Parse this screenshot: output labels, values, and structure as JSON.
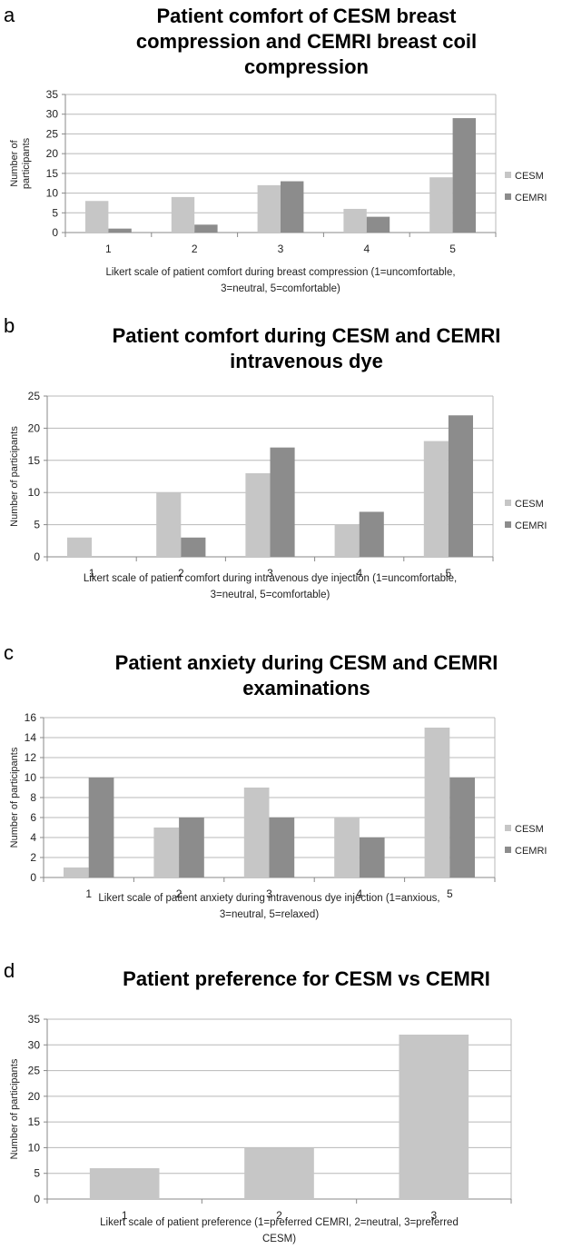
{
  "chart_data": [
    {
      "type": "bar",
      "panel": "a",
      "title": "Patient comfort of CESM breast compression and CEMRI breast coil compression",
      "title_lines": [
        "Patient comfort of CESM breast",
        "compression and CEMRI breast coil",
        "compression"
      ],
      "xlabel": "Likert scale of patient comfort during breast compression (1=uncomfortable, 3=neutral, 5=comfortable)",
      "xlabel_lines": [
        "Likert scale of patient comfort during breast compression (1=uncomfortable,",
        "3=neutral, 5=comfortable)"
      ],
      "ylabel": "Number of participants",
      "ylabel_lines": [
        "Number of",
        "participants"
      ],
      "categories": [
        "1",
        "2",
        "3",
        "4",
        "5"
      ],
      "series": [
        {
          "name": "CESM",
          "color": "#c6c6c6",
          "values": [
            8,
            9,
            12,
            6,
            14
          ]
        },
        {
          "name": "CEMRI",
          "color": "#8c8c8c",
          "values": [
            1,
            2,
            13,
            4,
            29
          ]
        }
      ],
      "ylim": [
        0,
        35
      ],
      "yticks": [
        "0",
        "5",
        "10",
        "15",
        "20",
        "25",
        "30",
        "35"
      ],
      "grid": true,
      "legend": "right"
    },
    {
      "type": "bar",
      "panel": "b",
      "title": "Patient comfort during CESM and CEMRI intravenous dye",
      "title_lines": [
        "Patient comfort  during CESM and CEMRI",
        "intravenous dye"
      ],
      "xlabel": "Likert scale of patient comfort during intravenous dye injection (1=uncomfortable, 3=neutral, 5=comfortable)",
      "xlabel_lines": [
        "Likert scale of patient comfort during intravenous dye injection (1=uncomfortable,",
        "3=neutral, 5=comfortable)"
      ],
      "ylabel": "Number of participants",
      "ylabel_lines": [
        "Number of participants"
      ],
      "categories": [
        "1",
        "2",
        "3",
        "4",
        "5"
      ],
      "series": [
        {
          "name": "CESM",
          "color": "#c6c6c6",
          "values": [
            3,
            10,
            13,
            5,
            18
          ]
        },
        {
          "name": "CEMRI",
          "color": "#8c8c8c",
          "values": [
            0,
            3,
            17,
            7,
            22
          ]
        }
      ],
      "ylim": [
        0,
        25
      ],
      "yticks": [
        "0",
        "5",
        "10",
        "15",
        "20",
        "25"
      ],
      "grid": true,
      "legend": "right"
    },
    {
      "type": "bar",
      "panel": "c",
      "title": "Patient anxiety during CESM and CEMRI examinations",
      "title_lines": [
        "Patient anxiety during CESM and CEMRI",
        "examinations"
      ],
      "xlabel": "Likert scale of patient anxiety during intravenous dye injection (1=anxious, 3=neutral, 5=relaxed)",
      "xlabel_lines": [
        "Likert scale of patient anxiety during intravenous dye injection (1=anxious,",
        "3=neutral, 5=relaxed)"
      ],
      "ylabel": "Number of participants",
      "ylabel_lines": [
        "Number of participants"
      ],
      "categories": [
        "1",
        "2",
        "3",
        "4",
        "5"
      ],
      "series": [
        {
          "name": "CESM",
          "color": "#c6c6c6",
          "values": [
            1,
            5,
            9,
            6,
            15
          ]
        },
        {
          "name": "CEMRI",
          "color": "#8c8c8c",
          "values": [
            10,
            6,
            6,
            4,
            10
          ]
        }
      ],
      "ylim": [
        0,
        16
      ],
      "yticks": [
        "0",
        "2",
        "4",
        "6",
        "8",
        "10",
        "12",
        "14",
        "16"
      ],
      "grid": true,
      "legend": "right"
    },
    {
      "type": "bar",
      "panel": "d",
      "title": "Patient preference for CESM vs CEMRI",
      "title_lines": [
        "Patient preference for CESM vs CEMRI"
      ],
      "xlabel": "Likert scale of patient preference (1=preferred CEMRI, 2=neutral, 3=preferred CESM)",
      "xlabel_lines": [
        "Likert scale of patient preference (1=preferred CEMRI, 2=neutral, 3=preferred",
        "CESM)"
      ],
      "ylabel": "Number of participants",
      "ylabel_lines": [
        "Number of participants"
      ],
      "categories": [
        "1",
        "2",
        "3"
      ],
      "series": [
        {
          "name": "",
          "color": "#c6c6c6",
          "values": [
            6,
            10,
            32
          ]
        }
      ],
      "ylim": [
        0,
        35
      ],
      "yticks": [
        "0",
        "5",
        "10",
        "15",
        "20",
        "25",
        "30",
        "35"
      ],
      "grid": true,
      "legend": "none"
    }
  ]
}
